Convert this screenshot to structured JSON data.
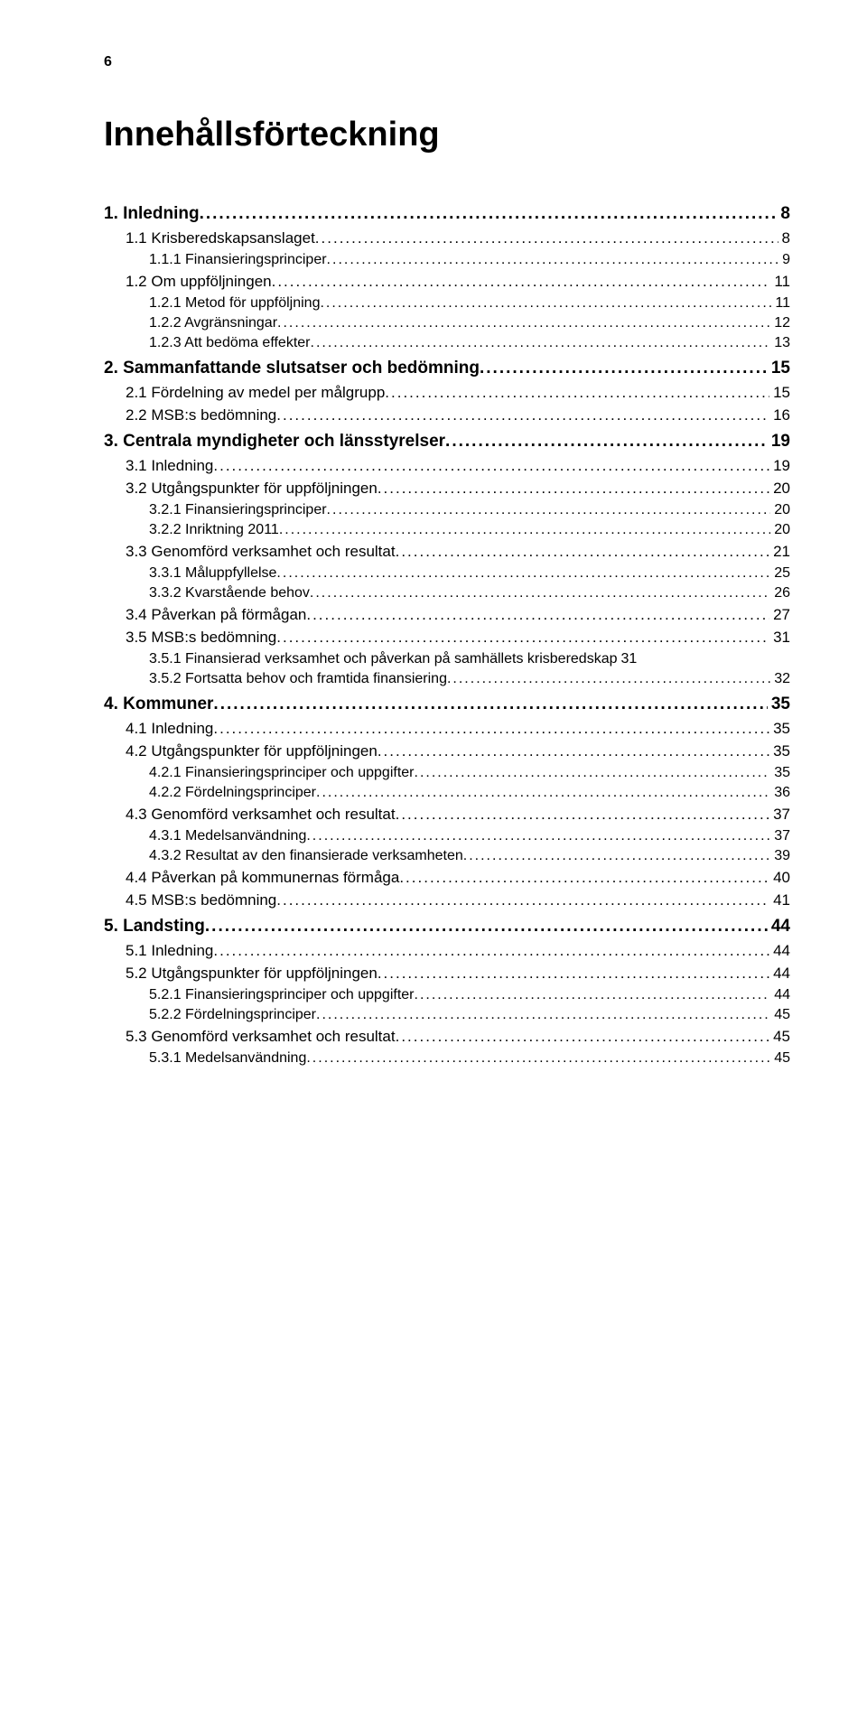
{
  "page_number": "6",
  "doc_title": "Innehållsförteckning",
  "toc": [
    {
      "level": 0,
      "label": "1. Inledning",
      "page": "8"
    },
    {
      "level": 1,
      "label": "1.1 Krisberedskapsanslaget",
      "page": "8"
    },
    {
      "level": 2,
      "label": "1.1.1 Finansieringsprinciper",
      "page": "9"
    },
    {
      "level": 1,
      "label": "1.2 Om uppföljningen",
      "page": "11"
    },
    {
      "level": 2,
      "label": "1.2.1 Metod för uppföljning",
      "page": "11"
    },
    {
      "level": 2,
      "label": "1.2.2 Avgränsningar",
      "page": "12"
    },
    {
      "level": 2,
      "label": "1.2.3 Att bedöma effekter",
      "page": "13"
    },
    {
      "level": 0,
      "label": "2. Sammanfattande slutsatser och bedömning",
      "page": "15"
    },
    {
      "level": 1,
      "label": "2.1 Fördelning av medel per målgrupp",
      "page": "15"
    },
    {
      "level": 1,
      "label": "2.2 MSB:s bedömning",
      "page": "16"
    },
    {
      "level": 0,
      "label": "3. Centrala myndigheter och länsstyrelser",
      "page": "19"
    },
    {
      "level": 1,
      "label": "3.1 Inledning",
      "page": "19"
    },
    {
      "level": 1,
      "label": "3.2 Utgångspunkter för uppföljningen",
      "page": "20"
    },
    {
      "level": 2,
      "label": "3.2.1 Finansieringsprinciper",
      "page": "20"
    },
    {
      "level": 2,
      "label": "3.2.2 Inriktning 2011",
      "page": "20"
    },
    {
      "level": 1,
      "label": "3.3 Genomförd verksamhet och resultat",
      "page": "21"
    },
    {
      "level": 2,
      "label": "3.3.1 Måluppfyllelse",
      "page": "25"
    },
    {
      "level": 2,
      "label": "3.3.2 Kvarstående behov",
      "page": "26"
    },
    {
      "level": 1,
      "label": "3.4 Påverkan på förmågan",
      "page": "27"
    },
    {
      "level": 1,
      "label": "3.5 MSB:s bedömning",
      "page": "31"
    },
    {
      "level": 2,
      "label": "3.5.1 Finansierad verksamhet och påverkan på samhällets krisberedskap",
      "page": "31",
      "no_leader": true
    },
    {
      "level": 2,
      "label": "3.5.2 Fortsatta behov och framtida finansiering",
      "page": "32"
    },
    {
      "level": 0,
      "label": "4. Kommuner",
      "page": "35"
    },
    {
      "level": 1,
      "label": "4.1 Inledning",
      "page": "35"
    },
    {
      "level": 1,
      "label": "4.2 Utgångspunkter för uppföljningen",
      "page": "35"
    },
    {
      "level": 2,
      "label": "4.2.1 Finansieringsprinciper och uppgifter",
      "page": "35"
    },
    {
      "level": 2,
      "label": "4.2.2 Fördelningsprinciper",
      "page": "36"
    },
    {
      "level": 1,
      "label": "4.3 Genomförd verksamhet och resultat",
      "page": "37"
    },
    {
      "level": 2,
      "label": "4.3.1 Medelsanvändning",
      "page": "37"
    },
    {
      "level": 2,
      "label": "4.3.2 Resultat av den finansierade verksamheten",
      "page": "39"
    },
    {
      "level": 1,
      "label": "4.4 Påverkan på kommunernas förmåga",
      "page": "40"
    },
    {
      "level": 1,
      "label": "4.5 MSB:s bedömning",
      "page": "41"
    },
    {
      "level": 0,
      "label": "5. Landsting",
      "page": "44"
    },
    {
      "level": 1,
      "label": "5.1 Inledning",
      "page": "44"
    },
    {
      "level": 1,
      "label": "5.2 Utgångspunkter för uppföljningen",
      "page": "44"
    },
    {
      "level": 2,
      "label": "5.2.1 Finansieringsprinciper och uppgifter",
      "page": "44"
    },
    {
      "level": 2,
      "label": "5.2.2 Fördelningsprinciper",
      "page": "45"
    },
    {
      "level": 1,
      "label": "5.3 Genomförd verksamhet och resultat",
      "page": "45"
    },
    {
      "level": 2,
      "label": "5.3.1 Medelsanvändning",
      "page": "45"
    }
  ]
}
